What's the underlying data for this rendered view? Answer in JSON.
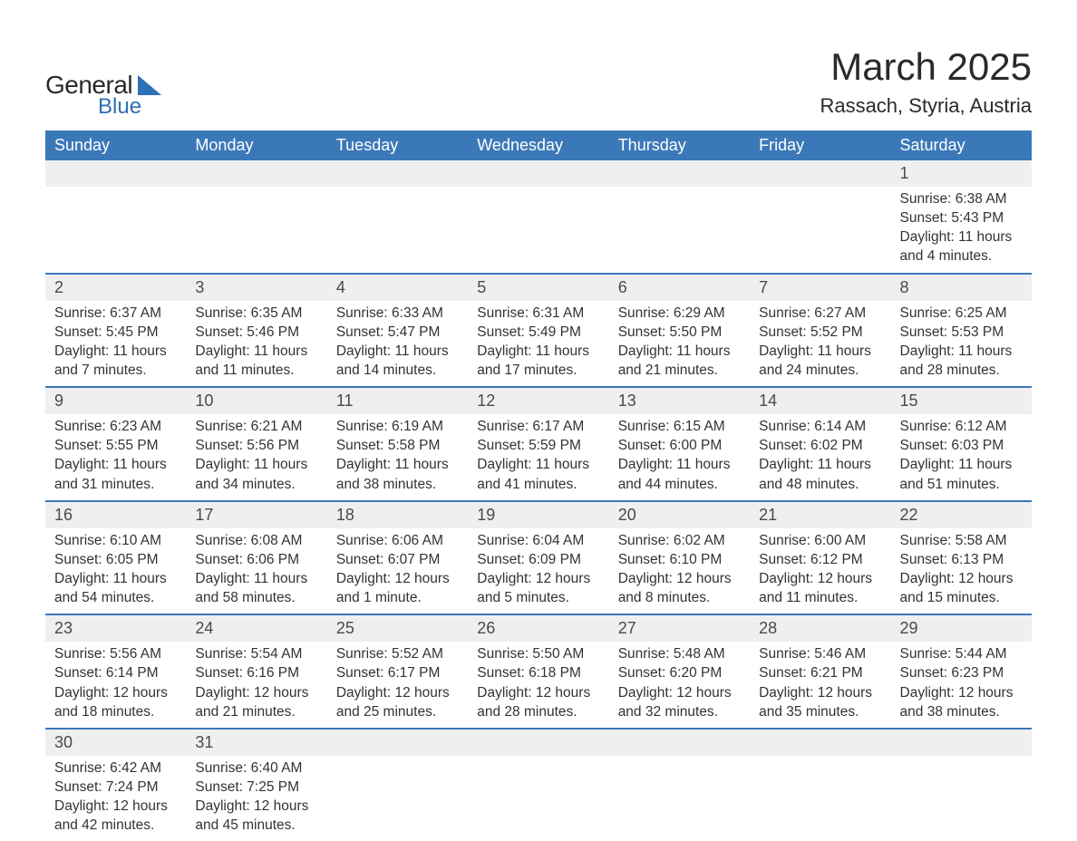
{
  "logo": {
    "word1": "General",
    "word2": "Blue"
  },
  "title": "March 2025",
  "location": "Rassach, Styria, Austria",
  "colors": {
    "header_bg": "#3b78b8",
    "header_text": "#ffffff",
    "daynum_bg": "#efefef",
    "row_divider": "#3b78b8",
    "text": "#333333",
    "logo_blue": "#2f6fb4",
    "background": "#ffffff"
  },
  "typography": {
    "title_fontsize": 42,
    "location_fontsize": 22,
    "dow_fontsize": 18,
    "daynum_fontsize": 18,
    "detail_fontsize": 15.5
  },
  "days_of_week": [
    "Sunday",
    "Monday",
    "Tuesday",
    "Wednesday",
    "Thursday",
    "Friday",
    "Saturday"
  ],
  "weeks": [
    [
      null,
      null,
      null,
      null,
      null,
      null,
      {
        "n": "1",
        "sr": "Sunrise: 6:38 AM",
        "ss": "Sunset: 5:43 PM",
        "d1": "Daylight: 11 hours",
        "d2": "and 4 minutes."
      }
    ],
    [
      {
        "n": "2",
        "sr": "Sunrise: 6:37 AM",
        "ss": "Sunset: 5:45 PM",
        "d1": "Daylight: 11 hours",
        "d2": "and 7 minutes."
      },
      {
        "n": "3",
        "sr": "Sunrise: 6:35 AM",
        "ss": "Sunset: 5:46 PM",
        "d1": "Daylight: 11 hours",
        "d2": "and 11 minutes."
      },
      {
        "n": "4",
        "sr": "Sunrise: 6:33 AM",
        "ss": "Sunset: 5:47 PM",
        "d1": "Daylight: 11 hours",
        "d2": "and 14 minutes."
      },
      {
        "n": "5",
        "sr": "Sunrise: 6:31 AM",
        "ss": "Sunset: 5:49 PM",
        "d1": "Daylight: 11 hours",
        "d2": "and 17 minutes."
      },
      {
        "n": "6",
        "sr": "Sunrise: 6:29 AM",
        "ss": "Sunset: 5:50 PM",
        "d1": "Daylight: 11 hours",
        "d2": "and 21 minutes."
      },
      {
        "n": "7",
        "sr": "Sunrise: 6:27 AM",
        "ss": "Sunset: 5:52 PM",
        "d1": "Daylight: 11 hours",
        "d2": "and 24 minutes."
      },
      {
        "n": "8",
        "sr": "Sunrise: 6:25 AM",
        "ss": "Sunset: 5:53 PM",
        "d1": "Daylight: 11 hours",
        "d2": "and 28 minutes."
      }
    ],
    [
      {
        "n": "9",
        "sr": "Sunrise: 6:23 AM",
        "ss": "Sunset: 5:55 PM",
        "d1": "Daylight: 11 hours",
        "d2": "and 31 minutes."
      },
      {
        "n": "10",
        "sr": "Sunrise: 6:21 AM",
        "ss": "Sunset: 5:56 PM",
        "d1": "Daylight: 11 hours",
        "d2": "and 34 minutes."
      },
      {
        "n": "11",
        "sr": "Sunrise: 6:19 AM",
        "ss": "Sunset: 5:58 PM",
        "d1": "Daylight: 11 hours",
        "d2": "and 38 minutes."
      },
      {
        "n": "12",
        "sr": "Sunrise: 6:17 AM",
        "ss": "Sunset: 5:59 PM",
        "d1": "Daylight: 11 hours",
        "d2": "and 41 minutes."
      },
      {
        "n": "13",
        "sr": "Sunrise: 6:15 AM",
        "ss": "Sunset: 6:00 PM",
        "d1": "Daylight: 11 hours",
        "d2": "and 44 minutes."
      },
      {
        "n": "14",
        "sr": "Sunrise: 6:14 AM",
        "ss": "Sunset: 6:02 PM",
        "d1": "Daylight: 11 hours",
        "d2": "and 48 minutes."
      },
      {
        "n": "15",
        "sr": "Sunrise: 6:12 AM",
        "ss": "Sunset: 6:03 PM",
        "d1": "Daylight: 11 hours",
        "d2": "and 51 minutes."
      }
    ],
    [
      {
        "n": "16",
        "sr": "Sunrise: 6:10 AM",
        "ss": "Sunset: 6:05 PM",
        "d1": "Daylight: 11 hours",
        "d2": "and 54 minutes."
      },
      {
        "n": "17",
        "sr": "Sunrise: 6:08 AM",
        "ss": "Sunset: 6:06 PM",
        "d1": "Daylight: 11 hours",
        "d2": "and 58 minutes."
      },
      {
        "n": "18",
        "sr": "Sunrise: 6:06 AM",
        "ss": "Sunset: 6:07 PM",
        "d1": "Daylight: 12 hours",
        "d2": "and 1 minute."
      },
      {
        "n": "19",
        "sr": "Sunrise: 6:04 AM",
        "ss": "Sunset: 6:09 PM",
        "d1": "Daylight: 12 hours",
        "d2": "and 5 minutes."
      },
      {
        "n": "20",
        "sr": "Sunrise: 6:02 AM",
        "ss": "Sunset: 6:10 PM",
        "d1": "Daylight: 12 hours",
        "d2": "and 8 minutes."
      },
      {
        "n": "21",
        "sr": "Sunrise: 6:00 AM",
        "ss": "Sunset: 6:12 PM",
        "d1": "Daylight: 12 hours",
        "d2": "and 11 minutes."
      },
      {
        "n": "22",
        "sr": "Sunrise: 5:58 AM",
        "ss": "Sunset: 6:13 PM",
        "d1": "Daylight: 12 hours",
        "d2": "and 15 minutes."
      }
    ],
    [
      {
        "n": "23",
        "sr": "Sunrise: 5:56 AM",
        "ss": "Sunset: 6:14 PM",
        "d1": "Daylight: 12 hours",
        "d2": "and 18 minutes."
      },
      {
        "n": "24",
        "sr": "Sunrise: 5:54 AM",
        "ss": "Sunset: 6:16 PM",
        "d1": "Daylight: 12 hours",
        "d2": "and 21 minutes."
      },
      {
        "n": "25",
        "sr": "Sunrise: 5:52 AM",
        "ss": "Sunset: 6:17 PM",
        "d1": "Daylight: 12 hours",
        "d2": "and 25 minutes."
      },
      {
        "n": "26",
        "sr": "Sunrise: 5:50 AM",
        "ss": "Sunset: 6:18 PM",
        "d1": "Daylight: 12 hours",
        "d2": "and 28 minutes."
      },
      {
        "n": "27",
        "sr": "Sunrise: 5:48 AM",
        "ss": "Sunset: 6:20 PM",
        "d1": "Daylight: 12 hours",
        "d2": "and 32 minutes."
      },
      {
        "n": "28",
        "sr": "Sunrise: 5:46 AM",
        "ss": "Sunset: 6:21 PM",
        "d1": "Daylight: 12 hours",
        "d2": "and 35 minutes."
      },
      {
        "n": "29",
        "sr": "Sunrise: 5:44 AM",
        "ss": "Sunset: 6:23 PM",
        "d1": "Daylight: 12 hours",
        "d2": "and 38 minutes."
      }
    ],
    [
      {
        "n": "30",
        "sr": "Sunrise: 6:42 AM",
        "ss": "Sunset: 7:24 PM",
        "d1": "Daylight: 12 hours",
        "d2": "and 42 minutes."
      },
      {
        "n": "31",
        "sr": "Sunrise: 6:40 AM",
        "ss": "Sunset: 7:25 PM",
        "d1": "Daylight: 12 hours",
        "d2": "and 45 minutes."
      },
      null,
      null,
      null,
      null,
      null
    ]
  ]
}
